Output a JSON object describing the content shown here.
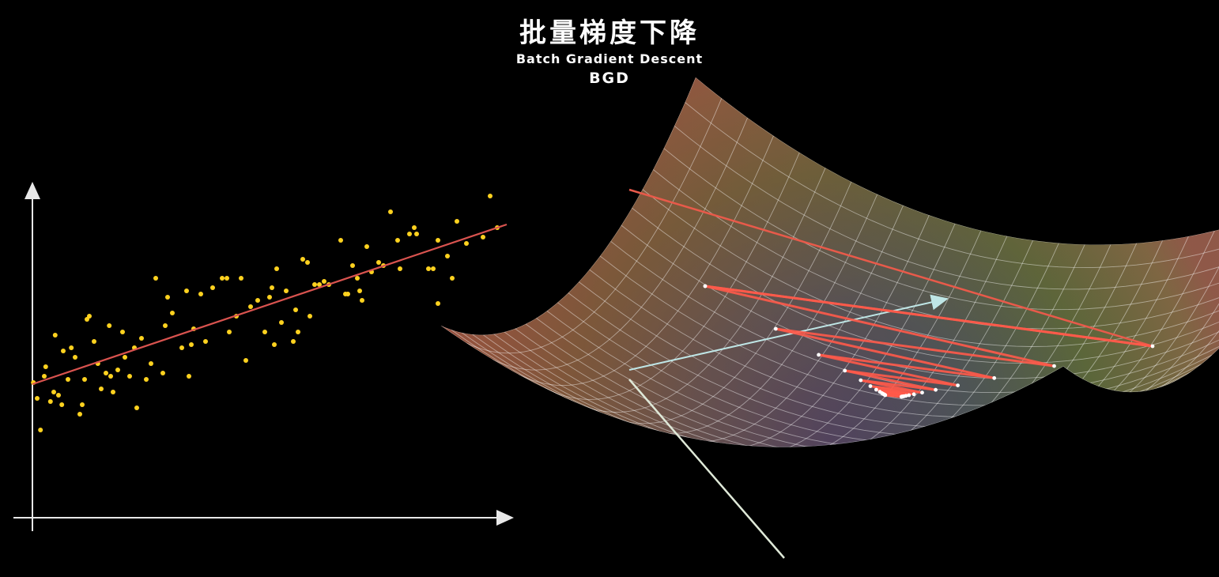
{
  "header": {
    "title": "批量梯度下降",
    "subtitle": "Batch Gradient Descent",
    "abbreviation": "BGD"
  },
  "colors": {
    "points": "#ffd21f",
    "fit_line": "#d9534f",
    "axes": "#e8e8e8",
    "descent_path": "#ff5a4a",
    "surface_grid": "#ffffff"
  },
  "chart_data": [
    {
      "type": "scatter",
      "title": "",
      "xlabel": "",
      "ylabel": "",
      "xlim": [
        0,
        10
      ],
      "ylim": [
        0,
        10
      ],
      "grid": false,
      "legend": "none",
      "points": [
        [
          0.02,
          3.9
        ],
        [
          0.1,
          3.4
        ],
        [
          0.17,
          2.4
        ],
        [
          0.28,
          4.4
        ],
        [
          0.38,
          3.3
        ],
        [
          0.45,
          3.6
        ],
        [
          0.48,
          5.4
        ],
        [
          0.55,
          3.5
        ],
        [
          0.62,
          3.2
        ],
        [
          0.75,
          4.0
        ],
        [
          0.82,
          5.0
        ],
        [
          0.9,
          4.7
        ],
        [
          1.0,
          2.9
        ],
        [
          1.05,
          3.2
        ],
        [
          1.1,
          4.0
        ],
        [
          1.15,
          5.9
        ],
        [
          1.2,
          6.0
        ],
        [
          1.3,
          5.2
        ],
        [
          1.38,
          4.5
        ],
        [
          1.45,
          3.7
        ],
        [
          1.55,
          4.2
        ],
        [
          1.65,
          4.1
        ],
        [
          1.7,
          3.6
        ],
        [
          1.8,
          4.3
        ],
        [
          1.9,
          5.5
        ],
        [
          1.95,
          4.7
        ],
        [
          2.05,
          4.1
        ],
        [
          2.15,
          5.0
        ],
        [
          2.2,
          3.1
        ],
        [
          2.3,
          5.3
        ],
        [
          2.4,
          4.0
        ],
        [
          2.5,
          4.5
        ],
        [
          2.75,
          4.2
        ],
        [
          2.8,
          5.7
        ],
        [
          2.85,
          6.6
        ],
        [
          2.95,
          6.1
        ],
        [
          3.15,
          5.0
        ],
        [
          3.25,
          6.8
        ],
        [
          3.3,
          4.1
        ],
        [
          3.35,
          5.1
        ],
        [
          3.4,
          5.6
        ],
        [
          3.65,
          5.2
        ],
        [
          3.8,
          6.9
        ],
        [
          4.0,
          7.2
        ],
        [
          4.1,
          7.2
        ],
        [
          4.15,
          5.5
        ],
        [
          4.3,
          6.0
        ],
        [
          4.4,
          7.2
        ],
        [
          4.6,
          6.3
        ],
        [
          4.75,
          6.5
        ],
        [
          4.9,
          5.5
        ],
        [
          5.0,
          6.6
        ],
        [
          5.05,
          6.9
        ],
        [
          5.1,
          5.1
        ],
        [
          5.15,
          7.5
        ],
        [
          5.25,
          5.8
        ],
        [
          5.35,
          6.8
        ],
        [
          5.5,
          5.2
        ],
        [
          5.55,
          6.2
        ],
        [
          5.6,
          5.5
        ],
        [
          5.7,
          7.8
        ],
        [
          5.85,
          6.0
        ],
        [
          5.95,
          7.0
        ],
        [
          6.05,
          7.0
        ],
        [
          6.15,
          7.1
        ],
        [
          6.25,
          7.0
        ],
        [
          6.5,
          8.4
        ],
        [
          6.6,
          6.7
        ],
        [
          6.65,
          6.7
        ],
        [
          6.75,
          7.6
        ],
        [
          6.85,
          7.2
        ],
        [
          6.9,
          6.8
        ],
        [
          6.95,
          6.5
        ],
        [
          7.05,
          8.2
        ],
        [
          7.15,
          7.4
        ],
        [
          7.3,
          7.7
        ],
        [
          7.4,
          7.6
        ],
        [
          7.55,
          9.3
        ],
        [
          7.75,
          7.5
        ],
        [
          7.95,
          8.6
        ],
        [
          8.05,
          8.8
        ],
        [
          8.1,
          8.6
        ],
        [
          8.35,
          7.5
        ],
        [
          8.45,
          7.5
        ],
        [
          8.55,
          6.4
        ],
        [
          8.55,
          8.4
        ],
        [
          8.75,
          7.9
        ],
        [
          8.85,
          7.2
        ],
        [
          8.95,
          9.0
        ],
        [
          9.15,
          8.3
        ],
        [
          9.5,
          8.5
        ],
        [
          9.65,
          9.8
        ],
        [
          9.8,
          8.8
        ],
        [
          0.25,
          4.1
        ],
        [
          0.65,
          4.9
        ],
        [
          1.62,
          5.7
        ],
        [
          2.6,
          7.2
        ],
        [
          3.55,
          6.7
        ],
        [
          4.5,
          4.6
        ],
        [
          5.8,
          7.7
        ],
        [
          7.7,
          8.4
        ]
      ],
      "fit_line": {
        "x": [
          0.0,
          10.0
        ],
        "y": [
          3.85,
          8.9
        ]
      }
    },
    {
      "type": "surface",
      "title": "",
      "description_labels": [],
      "descent_path_steps": 30
    }
  ]
}
